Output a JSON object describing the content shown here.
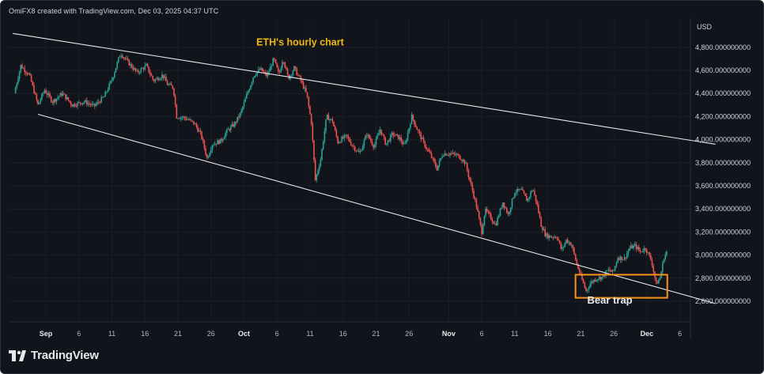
{
  "header": {
    "credit": "OmiFX8 created with TradingView.com, Dec 03, 2025 04:37 UTC"
  },
  "footer": {
    "brand": "TradingView"
  },
  "colors": {
    "background": "#12141c",
    "up": "#26a69a",
    "down": "#ef5350",
    "annotation": "#f0b90b",
    "trap_box": "#f7931a"
  },
  "chart_data": {
    "type": "candlestick",
    "title": "ETH's hourly chart",
    "currency": "USD",
    "ylim": [
      2450,
      5000
    ],
    "y_ticks": [
      {
        "value": 4800,
        "label": "4,800.000000000"
      },
      {
        "value": 4600,
        "label": "4,600.000000000"
      },
      {
        "value": 4400,
        "label": "4,400.000000000"
      },
      {
        "value": 4200,
        "label": "4,200.000000000"
      },
      {
        "value": 4000,
        "label": "4,000.000000000"
      },
      {
        "value": 3800,
        "label": "3,800.000000000"
      },
      {
        "value": 3600,
        "label": "3,600.000000000"
      },
      {
        "value": 3400,
        "label": "3,400.000000000"
      },
      {
        "value": 3200,
        "label": "3,200.000000000"
      },
      {
        "value": 3000,
        "label": "3,000.000000000"
      },
      {
        "value": 2800,
        "label": "2,800.000000000"
      },
      {
        "value": 2600,
        "label": "2,600.000000000"
      }
    ],
    "x_ticks": [
      {
        "day": 1,
        "label": "Sep",
        "bold": true
      },
      {
        "day": 6,
        "label": "6"
      },
      {
        "day": 11,
        "label": "11"
      },
      {
        "day": 16,
        "label": "16"
      },
      {
        "day": 21,
        "label": "21"
      },
      {
        "day": 26,
        "label": "26"
      },
      {
        "day": 31,
        "label": "Oct",
        "bold": true
      },
      {
        "day": 36,
        "label": "6"
      },
      {
        "day": 41,
        "label": "11"
      },
      {
        "day": 46,
        "label": "16"
      },
      {
        "day": 51,
        "label": "21"
      },
      {
        "day": 56,
        "label": "26"
      },
      {
        "day": 62,
        "label": "Nov",
        "bold": true
      },
      {
        "day": 67,
        "label": "6"
      },
      {
        "day": 72,
        "label": "11"
      },
      {
        "day": 77,
        "label": "16"
      },
      {
        "day": 82,
        "label": "21"
      },
      {
        "day": 87,
        "label": "26"
      },
      {
        "day": 92,
        "label": "Dec",
        "bold": true
      },
      {
        "day": 97,
        "label": "6"
      }
    ],
    "price_path": [
      [
        -3.8,
        4400
      ],
      [
        -2.8,
        4640
      ],
      [
        -1.5,
        4560
      ],
      [
        -0.2,
        4300
      ],
      [
        0.8,
        4430
      ],
      [
        2,
        4330
      ],
      [
        3.5,
        4400
      ],
      [
        5,
        4300
      ],
      [
        6.8,
        4330
      ],
      [
        8.3,
        4290
      ],
      [
        9.8,
        4370
      ],
      [
        11,
        4520
      ],
      [
        12.3,
        4750
      ],
      [
        13.3,
        4680
      ],
      [
        14.8,
        4580
      ],
      [
        16.2,
        4640
      ],
      [
        17.3,
        4510
      ],
      [
        18.7,
        4560
      ],
      [
        19.4,
        4480
      ],
      [
        20.3,
        4450
      ],
      [
        20.8,
        4200
      ],
      [
        22,
        4190
      ],
      [
        23.5,
        4140
      ],
      [
        24.5,
        4040
      ],
      [
        25.4,
        3840
      ],
      [
        26.2,
        3960
      ],
      [
        27.5,
        3990
      ],
      [
        28.5,
        4080
      ],
      [
        29.5,
        4130
      ],
      [
        30.5,
        4230
      ],
      [
        31.5,
        4400
      ],
      [
        32.5,
        4560
      ],
      [
        33.5,
        4610
      ],
      [
        34.5,
        4550
      ],
      [
        35.5,
        4700
      ],
      [
        36.3,
        4560
      ],
      [
        36.9,
        4710
      ],
      [
        37.7,
        4530
      ],
      [
        38.6,
        4620
      ],
      [
        39.7,
        4500
      ],
      [
        40.5,
        4390
      ],
      [
        41.2,
        4150
      ],
      [
        41.8,
        3650
      ],
      [
        42.6,
        3830
      ],
      [
        43.5,
        4200
      ],
      [
        44.4,
        4160
      ],
      [
        45.2,
        3980
      ],
      [
        46.5,
        4030
      ],
      [
        47.4,
        3950
      ],
      [
        48.5,
        3880
      ],
      [
        49.6,
        4050
      ],
      [
        50.7,
        3940
      ],
      [
        51.6,
        4090
      ],
      [
        52.5,
        3960
      ],
      [
        53.5,
        4050
      ],
      [
        54.6,
        4010
      ],
      [
        55.3,
        3940
      ],
      [
        56.4,
        4200
      ],
      [
        57.3,
        4080
      ],
      [
        58.3,
        3960
      ],
      [
        59.3,
        3860
      ],
      [
        60.2,
        3750
      ],
      [
        61.1,
        3880
      ],
      [
        62.2,
        3880
      ],
      [
        63.5,
        3860
      ],
      [
        64.5,
        3800
      ],
      [
        65.4,
        3600
      ],
      [
        66.1,
        3450
      ],
      [
        67.0,
        3200
      ],
      [
        67.5,
        3390
      ],
      [
        68.3,
        3330
      ],
      [
        69.1,
        3260
      ],
      [
        70.2,
        3460
      ],
      [
        71,
        3350
      ],
      [
        72,
        3550
      ],
      [
        73,
        3560
      ],
      [
        73.9,
        3470
      ],
      [
        74.7,
        3580
      ],
      [
        75.4,
        3430
      ],
      [
        76,
        3260
      ],
      [
        76.7,
        3170
      ],
      [
        77.5,
        3160
      ],
      [
        78.4,
        3160
      ],
      [
        79.1,
        3040
      ],
      [
        79.8,
        3130
      ],
      [
        80.6,
        3090
      ],
      [
        81.3,
        2940
      ],
      [
        81.9,
        2830
      ],
      [
        82.8,
        2690
      ],
      [
        83.5,
        2760
      ],
      [
        84.4,
        2800
      ],
      [
        85.3,
        2810
      ],
      [
        86.1,
        2870
      ],
      [
        86.9,
        2850
      ],
      [
        87.6,
        2980
      ],
      [
        88.6,
        2970
      ],
      [
        89.4,
        3060
      ],
      [
        90.2,
        3080
      ],
      [
        91.0,
        3030
      ],
      [
        91.8,
        3060
      ],
      [
        92.7,
        2950
      ],
      [
        93.4,
        2750
      ],
      [
        94.0,
        2800
      ],
      [
        94.6,
        2980
      ],
      [
        95.1,
        3040
      ]
    ],
    "trendlines": [
      {
        "name": "upper",
        "from": [
          -4,
          4920
        ],
        "to": [
          102.4,
          3960
        ]
      },
      {
        "name": "lower",
        "from": [
          -0.2,
          4220
        ],
        "to": [
          102.4,
          2580
        ]
      }
    ],
    "annotations": [
      {
        "text": "ETH's hourly chart",
        "at": [
          39.5,
          4815
        ]
      },
      {
        "text": "Bear trap",
        "at": [
          86.4,
          2580
        ]
      }
    ],
    "highlight_box": {
      "x": [
        81.2,
        95.1
      ],
      "y": [
        2630,
        2830
      ]
    }
  }
}
